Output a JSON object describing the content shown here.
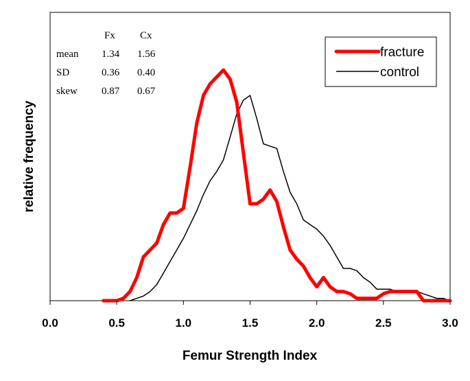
{
  "chart_data": {
    "type": "line",
    "title": "",
    "xlabel": "Femur Strength Index",
    "ylabel": "relative frequency",
    "xlim": [
      0.0,
      3.0
    ],
    "ylim": [
      0,
      1.0
    ],
    "x_ticks": [
      "0.0",
      "0.5",
      "1.0",
      "1.5",
      "2.0",
      "2.5",
      "3.0"
    ],
    "y_tick_labels_shown": false,
    "grid": false,
    "legend": {
      "placement": "top-right",
      "entries": [
        "fracture",
        "control"
      ]
    },
    "series": [
      {
        "name": "fracture",
        "color": "#ff0000",
        "x": [
          0.4,
          0.45,
          0.5,
          0.55,
          0.6,
          0.65,
          0.7,
          0.75,
          0.8,
          0.85,
          0.9,
          0.95,
          1.0,
          1.05,
          1.1,
          1.15,
          1.2,
          1.25,
          1.3,
          1.35,
          1.4,
          1.45,
          1.5,
          1.55,
          1.6,
          1.65,
          1.7,
          1.75,
          1.8,
          1.85,
          1.9,
          1.95,
          2.0,
          2.05,
          2.1,
          2.15,
          2.2,
          2.25,
          2.3,
          2.35,
          2.4,
          2.45,
          2.5,
          2.55,
          2.6,
          2.65,
          2.7,
          2.75,
          2.8,
          2.85,
          2.9,
          2.95,
          3.0
        ],
        "values": [
          0.0,
          0.0,
          0.0,
          0.01,
          0.04,
          0.1,
          0.19,
          0.22,
          0.25,
          0.33,
          0.38,
          0.38,
          0.4,
          0.58,
          0.77,
          0.89,
          0.94,
          0.97,
          1.0,
          0.96,
          0.86,
          0.64,
          0.42,
          0.42,
          0.44,
          0.48,
          0.43,
          0.32,
          0.22,
          0.18,
          0.15,
          0.1,
          0.06,
          0.1,
          0.06,
          0.04,
          0.04,
          0.03,
          0.01,
          0.01,
          0.01,
          0.01,
          0.03,
          0.04,
          0.04,
          0.04,
          0.04,
          0.04,
          0.0,
          0.0,
          0.0,
          0.0,
          0.0
        ]
      },
      {
        "name": "control",
        "color": "#000000",
        "x": [
          0.6,
          0.65,
          0.7,
          0.75,
          0.8,
          0.85,
          0.9,
          0.95,
          1.0,
          1.05,
          1.1,
          1.15,
          1.2,
          1.25,
          1.3,
          1.35,
          1.4,
          1.45,
          1.5,
          1.55,
          1.6,
          1.65,
          1.7,
          1.75,
          1.8,
          1.85,
          1.9,
          1.95,
          2.0,
          2.05,
          2.1,
          2.15,
          2.2,
          2.25,
          2.3,
          2.35,
          2.4,
          2.45,
          2.5,
          2.55,
          2.6,
          2.65,
          2.7,
          2.75,
          2.8,
          2.85,
          2.9,
          2.95,
          3.0
        ],
        "values": [
          0.0,
          0.01,
          0.02,
          0.04,
          0.07,
          0.12,
          0.17,
          0.22,
          0.27,
          0.33,
          0.39,
          0.46,
          0.52,
          0.56,
          0.61,
          0.71,
          0.81,
          0.87,
          0.89,
          0.79,
          0.68,
          0.67,
          0.66,
          0.56,
          0.47,
          0.42,
          0.35,
          0.33,
          0.31,
          0.28,
          0.24,
          0.19,
          0.14,
          0.14,
          0.13,
          0.1,
          0.08,
          0.05,
          0.05,
          0.05,
          0.04,
          0.04,
          0.04,
          0.04,
          0.03,
          0.02,
          0.01,
          0.01,
          0.0
        ]
      }
    ],
    "stats_table": {
      "headers": [
        "",
        "Fx",
        "Cx"
      ],
      "rows": [
        [
          "mean",
          "1.34",
          "1.56"
        ],
        [
          "SD",
          "0.36",
          "0.40"
        ],
        [
          "skew",
          "0.87",
          "0.67"
        ]
      ]
    }
  }
}
